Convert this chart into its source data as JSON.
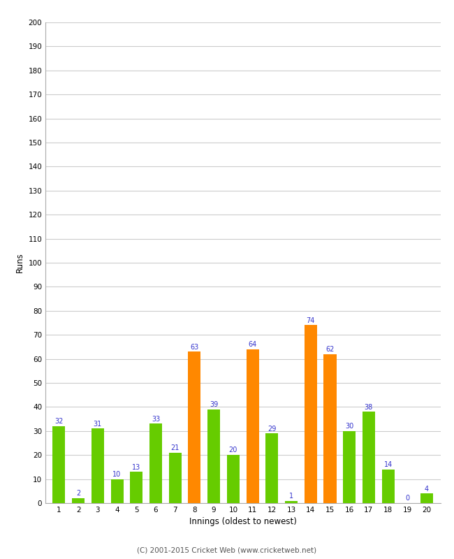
{
  "xlabel": "Innings (oldest to newest)",
  "ylabel": "Runs",
  "innings": [
    1,
    2,
    3,
    4,
    5,
    6,
    7,
    8,
    9,
    10,
    11,
    12,
    13,
    14,
    15,
    16,
    17,
    18,
    19,
    20
  ],
  "values": [
    32,
    2,
    31,
    10,
    13,
    33,
    21,
    63,
    39,
    20,
    64,
    29,
    1,
    74,
    62,
    30,
    38,
    14,
    0,
    4
  ],
  "colors": [
    "#66cc00",
    "#66cc00",
    "#66cc00",
    "#66cc00",
    "#66cc00",
    "#66cc00",
    "#66cc00",
    "#ff8800",
    "#66cc00",
    "#66cc00",
    "#ff8800",
    "#66cc00",
    "#66cc00",
    "#ff8800",
    "#ff8800",
    "#66cc00",
    "#66cc00",
    "#66cc00",
    "#66cc00",
    "#66cc00"
  ],
  "ylim": [
    0,
    200
  ],
  "yticks": [
    0,
    10,
    20,
    30,
    40,
    50,
    60,
    70,
    80,
    90,
    100,
    110,
    120,
    130,
    140,
    150,
    160,
    170,
    180,
    190,
    200
  ],
  "label_color": "#3333cc",
  "background_color": "#ffffff",
  "grid_color": "#cccccc",
  "footer": "(C) 2001-2015 Cricket Web (www.cricketweb.net)",
  "bar_width": 0.65
}
